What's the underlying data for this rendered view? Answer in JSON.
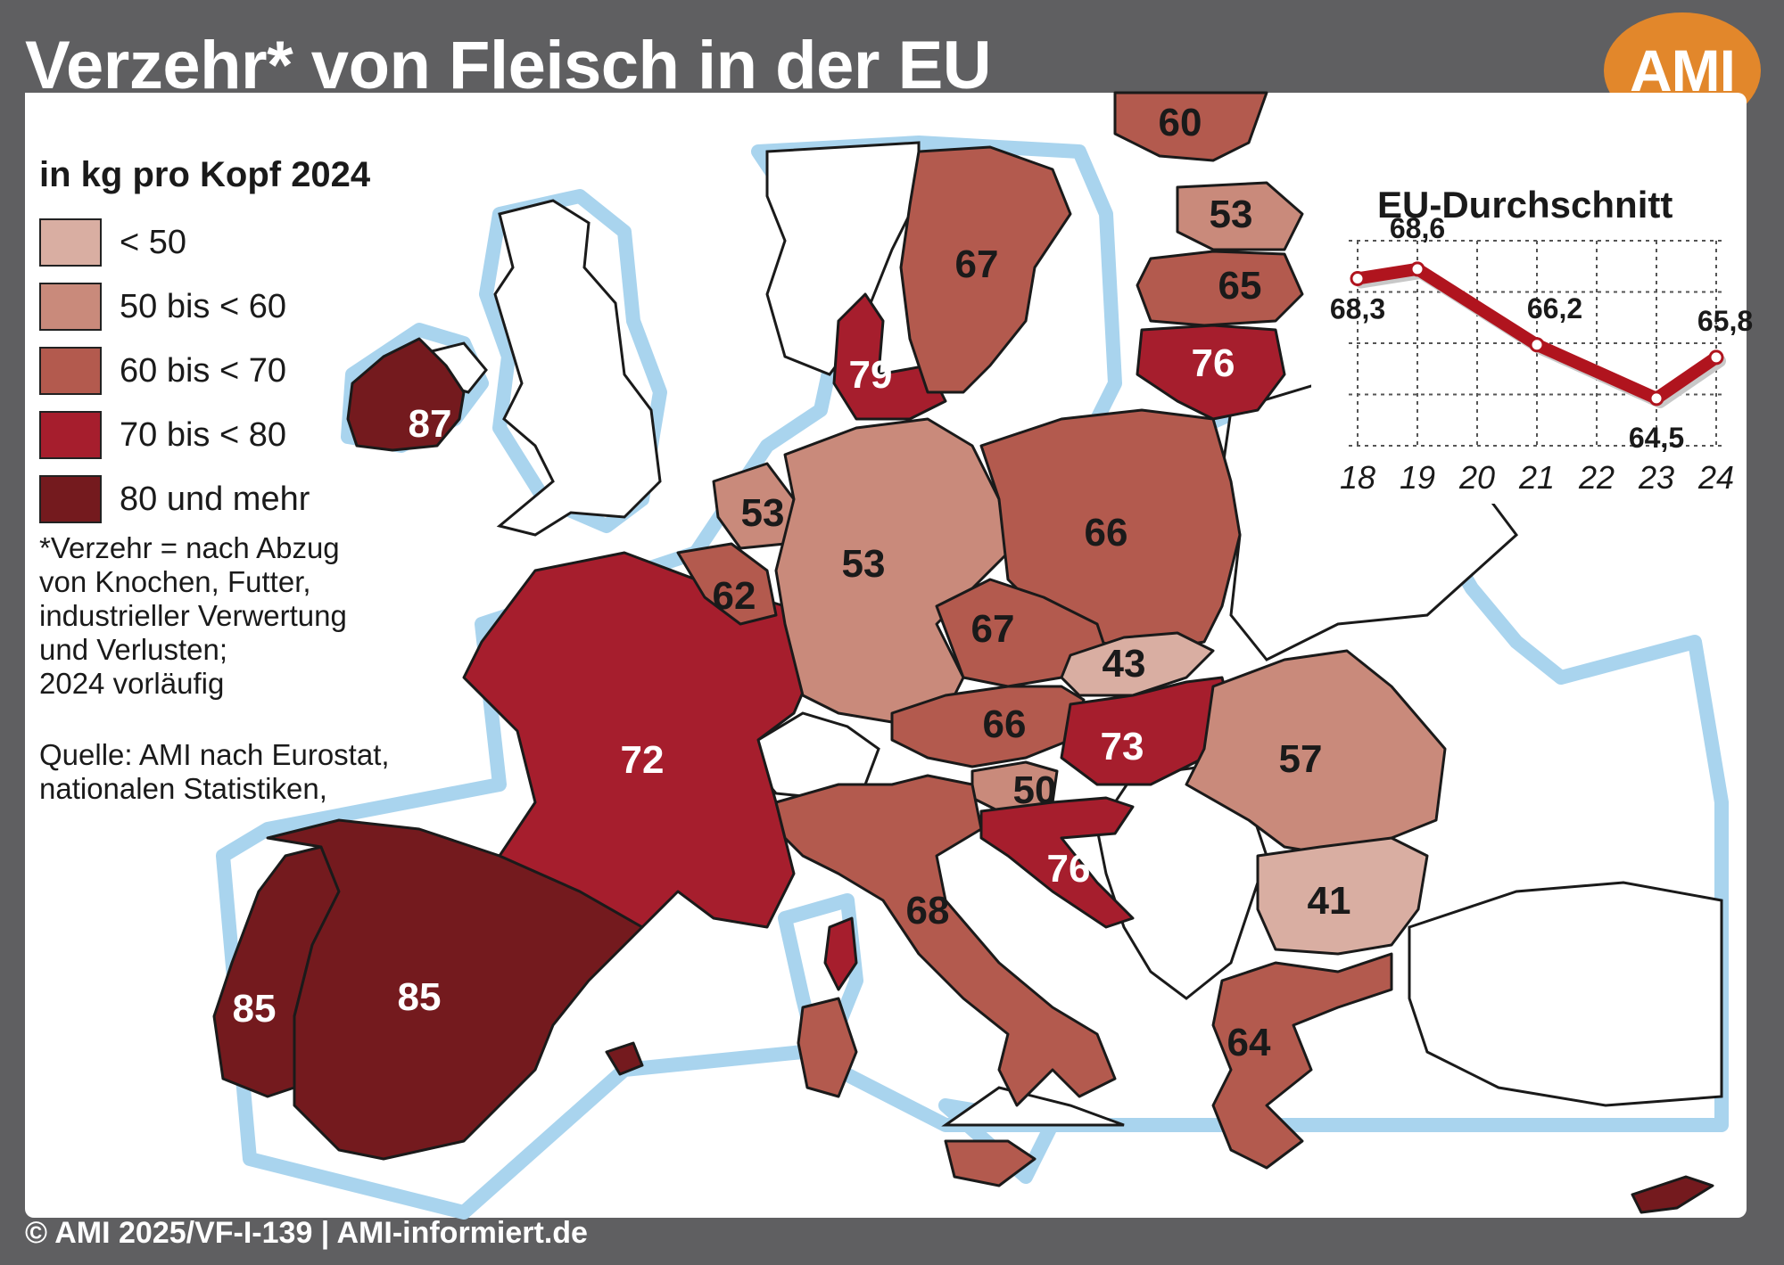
{
  "header": {
    "title": "Verzehr* von Fleisch in der EU",
    "logo_text": "AMI"
  },
  "legend": {
    "title": "in kg pro Kopf 2024",
    "items": [
      {
        "label": "< 50",
        "color": "#d9aea2"
      },
      {
        "label": "50 bis < 60",
        "color": "#c98a7b"
      },
      {
        "label": "60 bis < 70",
        "color": "#b35a4e"
      },
      {
        "label": "70 bis < 80",
        "color": "#a61e2d"
      },
      {
        "label": "80 und mehr",
        "color": "#741a1e"
      }
    ]
  },
  "footnote": "*Verzehr = nach Abzug\nvon Knochen, Futter,\nindustrieller Verwertung\nund Verlusten;\n2024 vorläufig",
  "source": "Quelle: AMI nach Eurostat,\nnationalen Statistiken,",
  "footer": "© AMI 2025/VF-I-139 | AMI-informiert.de",
  "map_values": [
    {
      "id": "ireland",
      "value": "87",
      "tier": 4
    },
    {
      "id": "portugal",
      "value": "85",
      "tier": 4
    },
    {
      "id": "spain",
      "value": "85",
      "tier": 4
    },
    {
      "id": "france",
      "value": "72",
      "tier": 3
    },
    {
      "id": "denmark",
      "value": "79",
      "tier": 3
    },
    {
      "id": "lithuania",
      "value": "76",
      "tier": 3
    },
    {
      "id": "hungary",
      "value": "73",
      "tier": 3
    },
    {
      "id": "croatia",
      "value": "76",
      "tier": 3
    },
    {
      "id": "sweden",
      "value": "67",
      "tier": 2
    },
    {
      "id": "latvia",
      "value": "65",
      "tier": 2
    },
    {
      "id": "poland",
      "value": "66",
      "tier": 2
    },
    {
      "id": "czechia",
      "value": "67",
      "tier": 2
    },
    {
      "id": "austria",
      "value": "66",
      "tier": 2
    },
    {
      "id": "italy",
      "value": "68",
      "tier": 2
    },
    {
      "id": "greece",
      "value": "64",
      "tier": 2
    },
    {
      "id": "belgium",
      "value": "62",
      "tier": 2
    },
    {
      "id": "finland",
      "value": "60",
      "tier": 2
    },
    {
      "id": "estonia",
      "value": "53",
      "tier": 1
    },
    {
      "id": "netherlands",
      "value": "53",
      "tier": 1
    },
    {
      "id": "germany",
      "value": "53",
      "tier": 1
    },
    {
      "id": "romania",
      "value": "57",
      "tier": 1
    },
    {
      "id": "slovenia",
      "value": "50",
      "tier": 1
    },
    {
      "id": "slovakia",
      "value": "43",
      "tier": 0
    },
    {
      "id": "bulgaria",
      "value": "41",
      "tier": 0
    },
    {
      "id": "cyprus",
      "value": "",
      "tier": 4
    }
  ],
  "chart_data": {
    "type": "line",
    "title": "EU-Durchschnitt",
    "categories": [
      "18",
      "19",
      "20",
      "21",
      "22",
      "23",
      "24"
    ],
    "x": [
      "18",
      "19",
      "21",
      "23",
      "24"
    ],
    "values": [
      68.3,
      68.6,
      66.2,
      64.5,
      65.8
    ],
    "point_labels": [
      "68,3",
      "68,6",
      "66,2",
      "64,5",
      "65,8"
    ],
    "grid": true,
    "line_color": "#b0141e"
  }
}
